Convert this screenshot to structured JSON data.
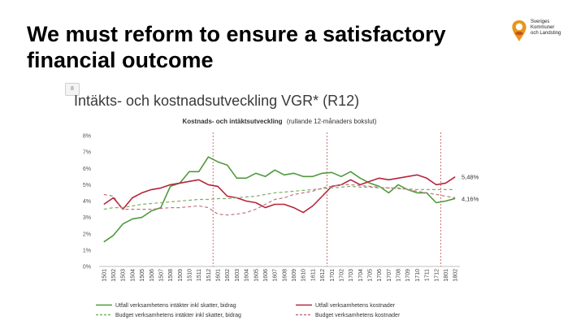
{
  "slide": {
    "title": "We must reform to ensure a satisfactory financial outcome",
    "page_number": "8",
    "chart_heading": "Intäkts- och kostnadsutveckling VGR* (R12)"
  },
  "logo": {
    "lines": [
      "Sveriges",
      "Kommuner",
      "och Landsting"
    ]
  },
  "chart_data": {
    "type": "line",
    "title_bold": "Kostnads- och intäktsutveckling",
    "title_rest": "(rullande 12-månaders bokslut)",
    "xlabel": "",
    "ylabel": "",
    "ylim": [
      0,
      8
    ],
    "yticks": [
      0,
      1,
      2,
      3,
      4,
      5,
      6,
      7,
      8
    ],
    "ytick_labels": [
      "0%",
      "1%",
      "2%",
      "3%",
      "4%",
      "5%",
      "6%",
      "7%",
      "8%"
    ],
    "grid": false,
    "legend_placement": "bottom",
    "categories": [
      "1501",
      "1502",
      "1503",
      "1504",
      "1505",
      "1506",
      "1507",
      "1508",
      "1509",
      "1510",
      "1511",
      "1512",
      "1601",
      "1602",
      "1603",
      "1604",
      "1605",
      "1606",
      "1607",
      "1608",
      "1609",
      "1610",
      "1611",
      "1612",
      "1701",
      "1702",
      "1703",
      "1704",
      "1705",
      "1706",
      "1707",
      "1708",
      "1709",
      "1710",
      "1711",
      "1712",
      "1801",
      "1802"
    ],
    "year_separators_after": [
      "1512",
      "1612",
      "1712"
    ],
    "series": [
      {
        "name": "Utfall verksamhetens intäkter inkl skatter, bidrag",
        "color": "#4e9a3a",
        "dash": false,
        "values": [
          1.5,
          1.9,
          2.6,
          2.9,
          3.0,
          3.4,
          3.6,
          4.9,
          5.1,
          5.8,
          5.8,
          6.7,
          6.4,
          6.2,
          5.4,
          5.4,
          5.7,
          5.5,
          5.9,
          5.6,
          5.7,
          5.5,
          5.5,
          5.7,
          5.75,
          5.5,
          5.8,
          5.4,
          5.1,
          4.9,
          4.5,
          5.0,
          4.7,
          4.5,
          4.5,
          3.9,
          4.0,
          4.16
        ]
      },
      {
        "name": "Utfall verksamhetens kostnader",
        "color": "#b5253a",
        "dash": false,
        "values": [
          3.8,
          4.2,
          3.5,
          4.2,
          4.5,
          4.7,
          4.8,
          5.0,
          5.1,
          5.2,
          5.3,
          5.0,
          4.9,
          4.3,
          4.2,
          4.0,
          3.9,
          3.6,
          3.8,
          3.8,
          3.6,
          3.3,
          3.7,
          4.3,
          4.9,
          5.0,
          5.3,
          5.0,
          5.2,
          5.4,
          5.3,
          5.4,
          5.5,
          5.6,
          5.4,
          5.0,
          5.1,
          5.48
        ]
      },
      {
        "name": "Budget verksamhetens intäkter inkl skatter, bidrag",
        "color": "#7fb068",
        "dash": true,
        "values": [
          3.5,
          3.6,
          3.6,
          3.7,
          3.8,
          3.85,
          3.9,
          3.95,
          4.0,
          4.05,
          4.1,
          4.1,
          4.15,
          4.15,
          4.2,
          4.25,
          4.3,
          4.4,
          4.5,
          4.55,
          4.6,
          4.65,
          4.7,
          4.75,
          4.8,
          4.85,
          4.9,
          4.85,
          4.85,
          4.8,
          4.8,
          4.75,
          4.75,
          4.7,
          4.7,
          4.7,
          4.7,
          4.7
        ]
      },
      {
        "name": "Budget verksamhetens kostnader",
        "color": "#c27380",
        "dash": true,
        "values": [
          4.4,
          4.3,
          3.5,
          3.5,
          3.5,
          3.5,
          3.55,
          3.6,
          3.6,
          3.65,
          3.7,
          3.6,
          3.2,
          3.15,
          3.2,
          3.3,
          3.5,
          3.8,
          4.1,
          4.2,
          4.4,
          4.5,
          4.6,
          4.8,
          4.9,
          5.0,
          5.0,
          4.95,
          4.9,
          4.85,
          4.8,
          4.8,
          4.7,
          4.6,
          4.5,
          4.4,
          4.3,
          4.2
        ]
      }
    ],
    "annotations": [
      {
        "text": "5,48%",
        "value": 5.48
      },
      {
        "text": "4,16%",
        "value": 4.16
      }
    ]
  }
}
